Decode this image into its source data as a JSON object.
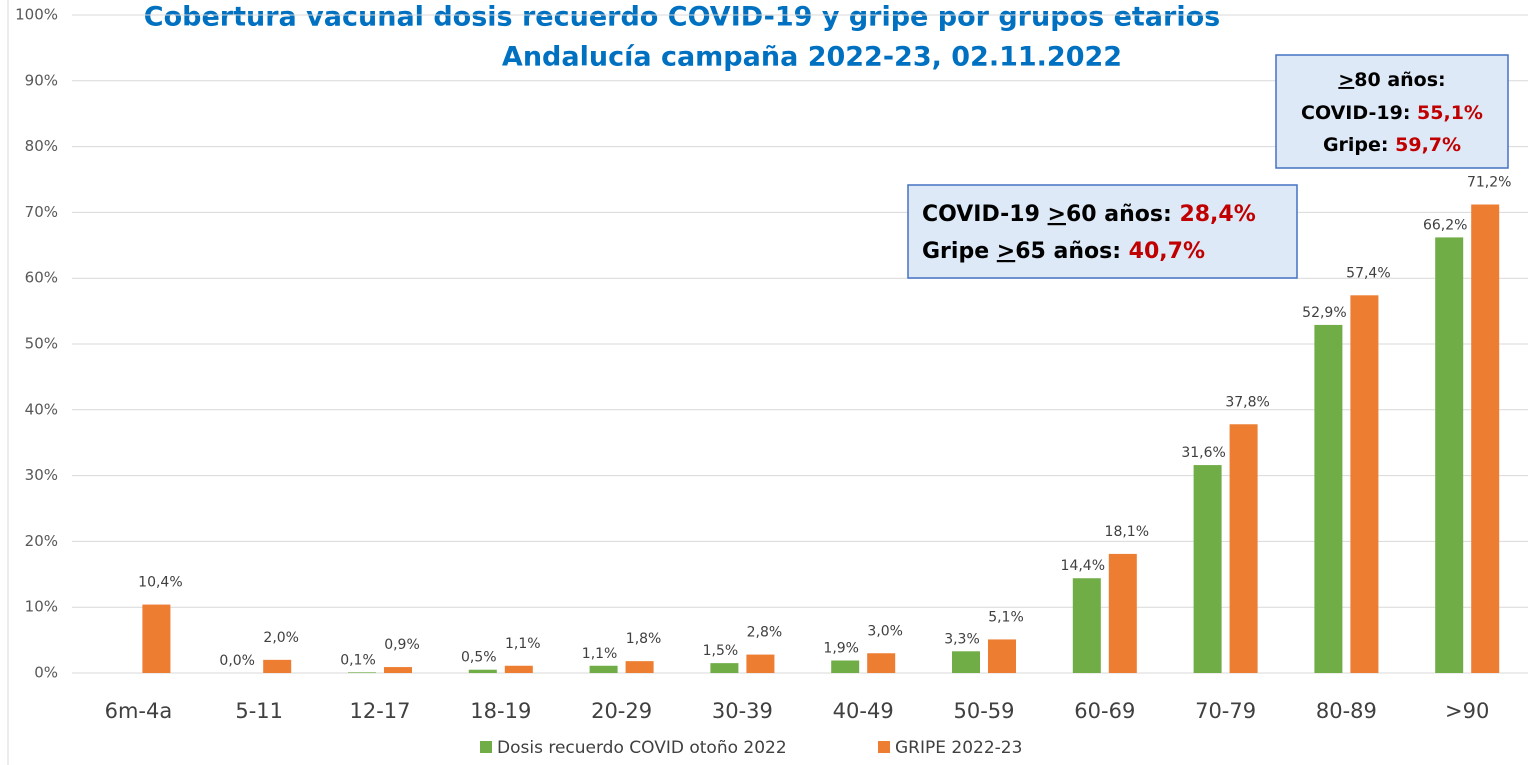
{
  "chart_data": {
    "type": "bar",
    "title": "Cobertura vacunal dosis recuerdo COVID-19 y gripe por grupos etarios",
    "subtitle": "Andalucía campaña 2022-23, 02.11.2022",
    "categories": [
      "6m-4a",
      "5-11",
      "12-17",
      "18-19",
      "20-29",
      "30-39",
      "40-49",
      "50-59",
      "60-69",
      "70-79",
      "80-89",
      ">90"
    ],
    "series": [
      {
        "name": "Dosis recuerdo COVID otoño 2022",
        "color": "#70ad47",
        "values": [
          null,
          0.0,
          0.1,
          0.5,
          1.1,
          1.5,
          1.9,
          3.3,
          14.4,
          31.6,
          52.9,
          66.2
        ],
        "value_labels": [
          null,
          "0,0%",
          "0,1%",
          "0,5%",
          "1,1%",
          "1,5%",
          "1,9%",
          "3,3%",
          "14,4%",
          "31,6%",
          "52,9%",
          "66,2%"
        ]
      },
      {
        "name": "GRIPE 2022-23",
        "color": "#ed7d31",
        "values": [
          10.4,
          2.0,
          0.9,
          1.1,
          1.8,
          2.8,
          3.0,
          5.1,
          18.1,
          37.8,
          57.4,
          71.2
        ],
        "value_labels": [
          "10,4%",
          "2,0%",
          "0,9%",
          "1,1%",
          "1,8%",
          "2,8%",
          "3,0%",
          "5,1%",
          "18,1%",
          "37,8%",
          "57,4%",
          "71,2%"
        ]
      }
    ],
    "ylim": [
      0,
      100
    ],
    "yticks": [
      {
        "value": 0,
        "label": "0%"
      },
      {
        "value": 10,
        "label": "10%"
      },
      {
        "value": 20,
        "label": "20%"
      },
      {
        "value": 30,
        "label": "30%"
      },
      {
        "value": 40,
        "label": "40%"
      },
      {
        "value": 50,
        "label": "50%"
      },
      {
        "value": 60,
        "label": "60%"
      },
      {
        "value": 70,
        "label": "70%"
      },
      {
        "value": 80,
        "label": "80%"
      },
      {
        "value": 90,
        "label": "90%"
      },
      {
        "value": 100,
        "label": "100%"
      }
    ],
    "grid": true,
    "legend": "bottom",
    "annotations": [
      {
        "lines": [
          [
            "COVID-19 ",
            ">",
            "60 años: ",
            "28,4%"
          ],
          [
            "Gripe ",
            ">",
            "65 años: ",
            "40,7%"
          ]
        ]
      },
      {
        "lines": [
          [
            ">",
            "80 años:"
          ],
          [
            "COVID-19: ",
            "55,1%"
          ],
          [
            "Gripe: ",
            "59,7%"
          ]
        ]
      }
    ]
  }
}
